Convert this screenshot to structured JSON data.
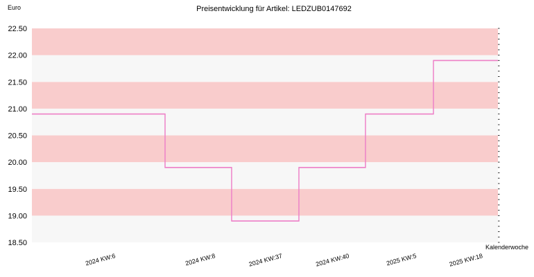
{
  "chart_data": {
    "type": "line",
    "step": true,
    "title": "Preisentwicklung für Artikel: LEDZUB0147692",
    "ylabel": "Euro",
    "xlabel": "Kalenderwoche",
    "ylim": [
      18.5,
      22.5
    ],
    "y_ticks": [
      "18.50",
      "19.00",
      "19.50",
      "20.00",
      "20.50",
      "21.00",
      "21.50",
      "22.00",
      "22.50"
    ],
    "categories": [
      "2024 KW:6",
      "2024 KW:8",
      "2024 KW:37",
      "2024 KW:40",
      "2025 KW:5",
      "2025 KW:18"
    ],
    "series": [
      {
        "values": [
          20.9,
          19.9,
          18.9,
          19.9,
          20.9,
          21.9
        ],
        "color": "#ee82c8"
      }
    ],
    "band_colors": [
      "#f9cccc",
      "#f7f7f7"
    ],
    "grid": true
  }
}
